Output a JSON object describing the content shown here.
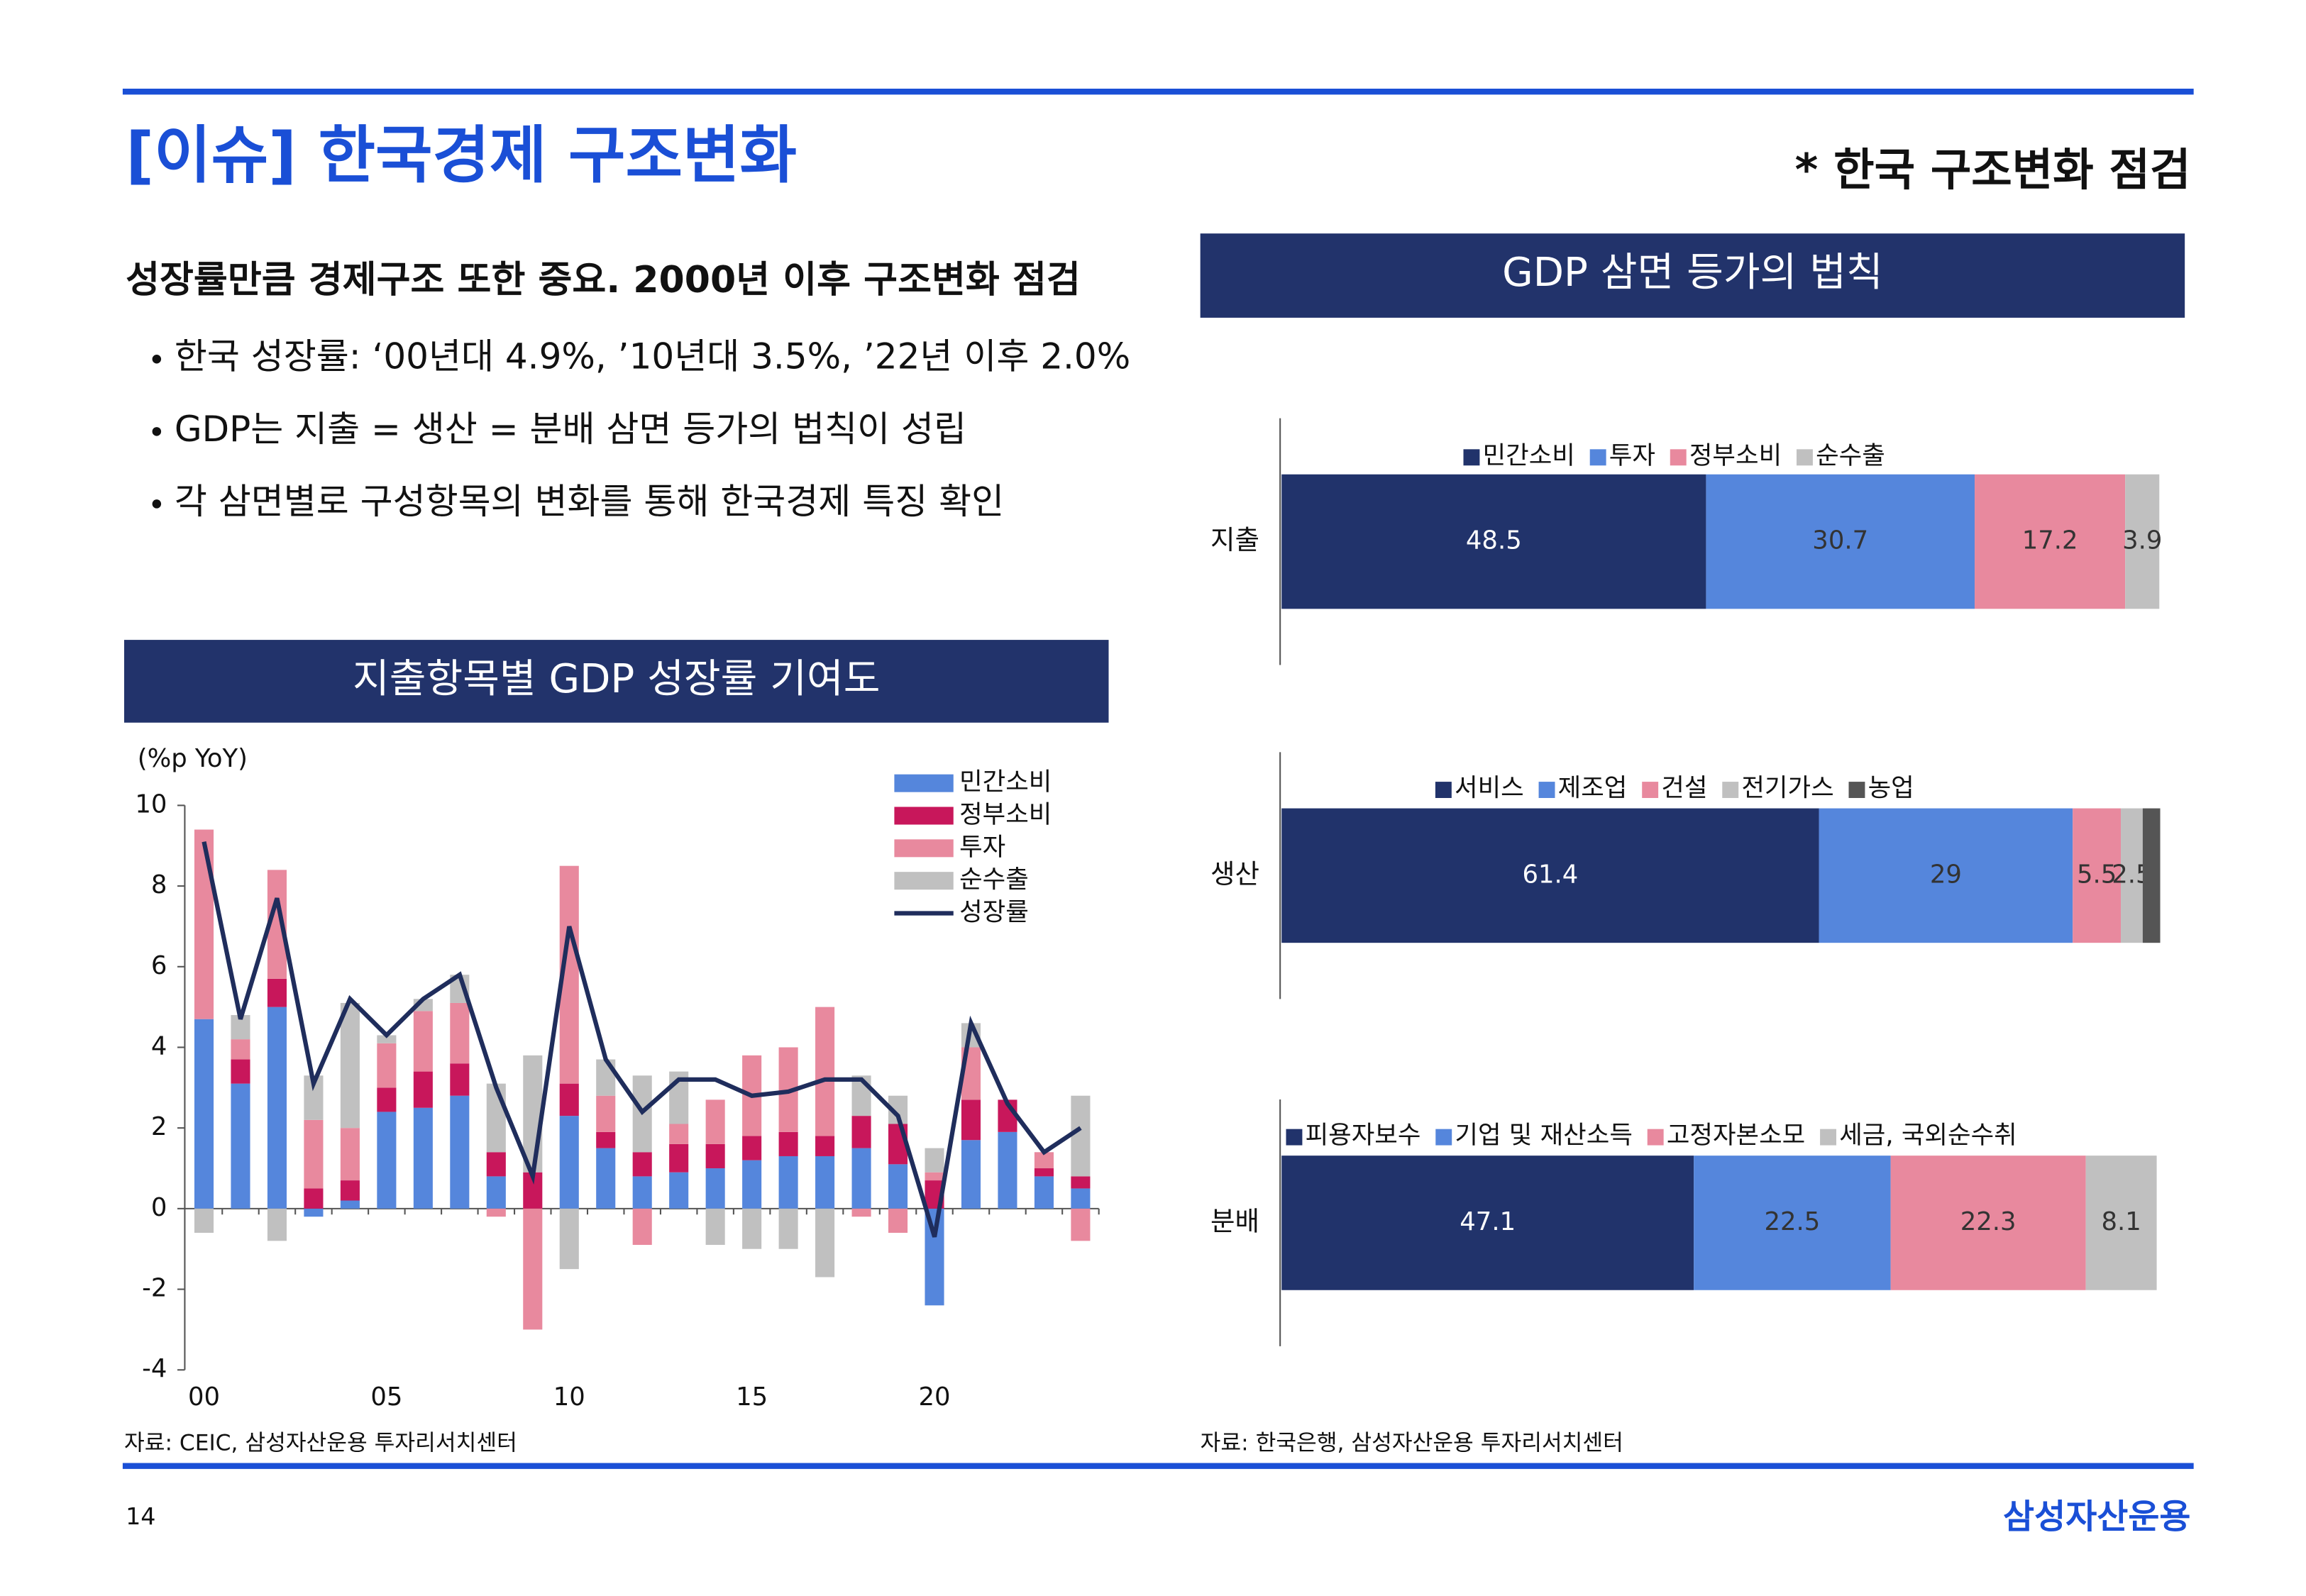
{
  "header": {
    "title": "[이슈] 한국경제 구조변화",
    "subtitle": "* 한국 구조변화 점검"
  },
  "summary": {
    "heading": "성장률만큼 경제구조 또한 중요. 2000년 이후 구조변화 점검",
    "bullets": [
      "한국 성장률: ‘00년대 4.9%, ’10년대 3.5%, ’22년 이후 2.0%",
      "GDP는 지출 = 생산 = 분배 삼면 등가의 법칙이 성립",
      "각 삼면별로 구성항목의 변화를 통해 한국경제 특징 확인"
    ]
  },
  "footer": {
    "page": 14,
    "brand": "삼성자산운용"
  },
  "chart_data": [
    {
      "type": "bar",
      "stacked": true,
      "title": "지출항목별 GDP 성장률 기여도",
      "y_label": "(%p YoY)",
      "categories": [
        "00",
        null,
        null,
        null,
        null,
        "05",
        null,
        null,
        null,
        null,
        "10",
        null,
        null,
        null,
        null,
        "15",
        null,
        null,
        null,
        null,
        "20",
        null,
        null,
        null,
        null
      ],
      "series": [
        {
          "name": "민간소비",
          "type": "bar",
          "color": "#5586dc",
          "values": [
            4.7,
            3.1,
            5.0,
            -0.2,
            0.2,
            2.4,
            2.5,
            2.8,
            0.8,
            0.0,
            2.3,
            1.5,
            0.8,
            0.9,
            1.0,
            1.2,
            1.3,
            1.3,
            1.5,
            1.1,
            -2.4,
            1.7,
            1.9,
            0.8,
            0.5
          ]
        },
        {
          "name": "정부소비",
          "type": "bar",
          "color": "#c8175b",
          "values": [
            0.0,
            0.6,
            0.7,
            0.5,
            0.5,
            0.6,
            0.9,
            0.8,
            0.6,
            0.9,
            0.8,
            0.4,
            0.6,
            0.7,
            0.6,
            0.6,
            0.6,
            0.5,
            0.8,
            1.0,
            0.7,
            1.0,
            0.8,
            0.2,
            0.3
          ]
        },
        {
          "name": "투자",
          "type": "bar",
          "color": "#e8899e",
          "values": [
            4.7,
            0.5,
            2.7,
            1.7,
            1.3,
            1.1,
            1.5,
            1.5,
            -0.2,
            -3.0,
            5.4,
            0.9,
            -0.9,
            0.5,
            1.1,
            2.0,
            2.1,
            3.2,
            -0.2,
            -0.6,
            0.2,
            1.3,
            0.0,
            0.4,
            -0.8
          ]
        },
        {
          "name": "순수출",
          "type": "bar",
          "color": "#c0c0c0",
          "values": [
            -0.6,
            0.6,
            -0.8,
            1.1,
            3.1,
            0.2,
            0.3,
            0.7,
            1.7,
            2.9,
            -1.5,
            0.9,
            1.9,
            1.3,
            -0.9,
            -1.0,
            -1.0,
            -1.7,
            1.0,
            0.7,
            0.6,
            0.6,
            0.0,
            0.0,
            2.0
          ]
        },
        {
          "name": "성장률",
          "type": "line",
          "color": "#1f2d5c",
          "values": [
            9.1,
            4.7,
            7.7,
            3.1,
            5.2,
            4.3,
            5.2,
            5.8,
            3.0,
            0.8,
            7.0,
            3.7,
            2.4,
            3.2,
            3.2,
            2.8,
            2.9,
            3.2,
            3.2,
            2.3,
            -0.7,
            4.6,
            2.6,
            1.4,
            2.0
          ]
        }
      ],
      "ylim": [
        -4,
        10
      ],
      "yticks": [
        -4,
        -2,
        0,
        2,
        4,
        6,
        8,
        10
      ],
      "legend": "upper right",
      "source": "자료: CEIC, 삼성자산운용 투자리서치센터"
    },
    {
      "type": "hbar",
      "stacked": true,
      "title": "GDP 삼면 등가의 법칙",
      "categories": [
        "지출"
      ],
      "xlim": [
        0,
        100
      ],
      "legend": "top",
      "series": [
        {
          "name": "민간소비",
          "color": "#21336b",
          "values": [
            48.5
          ]
        },
        {
          "name": "투자",
          "color": "#5586dc",
          "values": [
            30.7
          ]
        },
        {
          "name": "정부소비",
          "color": "#e8899e",
          "values": [
            17.2
          ]
        },
        {
          "name": "순수출",
          "color": "#c0c0c0",
          "values": [
            3.9
          ]
        }
      ],
      "source": "자료: 한국은행, 삼성자산운용 투자리서치센터"
    },
    {
      "type": "hbar",
      "stacked": true,
      "categories": [
        "생산"
      ],
      "xlim": [
        0,
        100
      ],
      "legend": "top",
      "series": [
        {
          "name": "서비스",
          "color": "#21336b",
          "values": [
            61.4
          ]
        },
        {
          "name": "제조업",
          "color": "#5586dc",
          "values": [
            29
          ]
        },
        {
          "name": "건설",
          "color": "#e8899e",
          "values": [
            5.5
          ]
        },
        {
          "name": "전기가스",
          "color": "#c0c0c0",
          "values": [
            2.5
          ]
        },
        {
          "name": "농업",
          "color": "#555555",
          "values": [
            2.0
          ],
          "value_labels": [
            null
          ]
        }
      ]
    },
    {
      "type": "hbar",
      "stacked": true,
      "categories": [
        "분배"
      ],
      "xlim": [
        0,
        100
      ],
      "legend": "top",
      "series": [
        {
          "name": "피용자보수",
          "color": "#21336b",
          "values": [
            47.1
          ]
        },
        {
          "name": "기업 및 재산소득",
          "color": "#5586dc",
          "values": [
            22.5
          ]
        },
        {
          "name": "고정자본소모",
          "color": "#e8899e",
          "values": [
            22.3
          ]
        },
        {
          "name": "세금, 국외순수취",
          "color": "#c0c0c0",
          "values": [
            8.1
          ]
        }
      ]
    }
  ]
}
